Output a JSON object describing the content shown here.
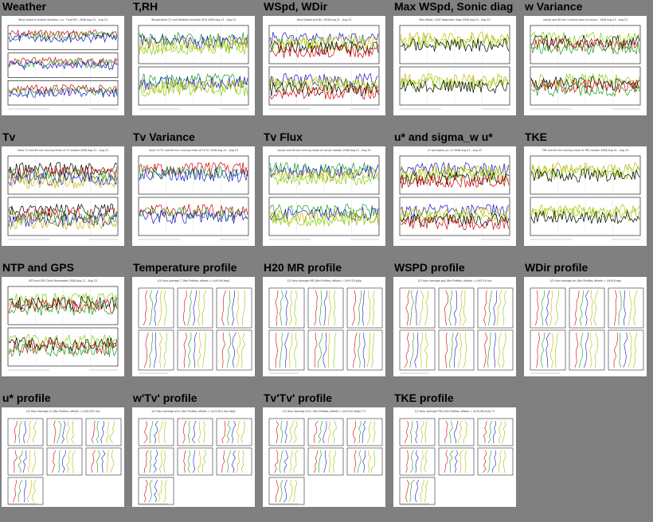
{
  "gallery": {
    "items": [
      {
        "title": "Weather",
        "kind": "ts",
        "caption": "Wind speed & median direction, u,v, T and RH - 2008 Aug 21 - Aug 23",
        "panels": 3
      },
      {
        "title": "T,RH",
        "kind": "ts",
        "caption": "Temperature (T) and Relative Humidity (RH) 2008 Aug 21 - Aug 23",
        "panels": 2
      },
      {
        "title": "WSpd, WDir",
        "kind": "ts",
        "caption": "Wind Speed and Dir, 2008 Aug 21 - Aug 23",
        "panels": 2
      },
      {
        "title": "Max WSpd, Sonic diag",
        "kind": "ts",
        "caption": "Max WSpd, CSAT diagnostic flags 2008 Aug 21 - Aug 23",
        "panels": 2
      },
      {
        "title": "w Variance",
        "kind": "ts",
        "caption": "var(w) and 60 min running mean of var(w) - 2008 Aug 21 - Aug 23",
        "panels": 2
      },
      {
        "title": "Tv",
        "kind": "ts",
        "caption": "Sonic Tv and 60 min running mean of Tv median 2008 Aug 21 - Aug 23",
        "panels": 2
      },
      {
        "title": "Tv Variance",
        "kind": "ts",
        "caption": "Sonic Tv'Tv' and 60 min running mean of Tv'Tv' 2008 Aug 21 - Aug 23",
        "panels": 2
      },
      {
        "title": "Tv Flux",
        "kind": "ts",
        "caption": "var(w) and 60 min running mean of var(w) median 2008 Aug 21 - Aug 23",
        "panels": 2
      },
      {
        "title": "u* and sigma_w u*",
        "kind": "ts",
        "caption": "u* and sigma_w / u* 2008 Aug 21 - Aug 23",
        "panels": 2
      },
      {
        "title": "TKE",
        "kind": "ts",
        "caption": "TKE and 60 min running mean of TKE median 2008 Aug 21 - Aug 23",
        "panels": 2
      },
      {
        "title": "NTP and GPS",
        "kind": "ts",
        "caption": "NTP and GPS Clock Parameters 2008 Aug 21 - Aug 23",
        "panels": 2
      },
      {
        "title": "Temperature profile",
        "kind": "prof",
        "caption": "1/2 Hour Average T,16m Profiles; offsets = (n)*0.64 degC",
        "rows": 2
      },
      {
        "title": "H20 MR profile",
        "kind": "prof",
        "caption": "1/2 Hour Average MR,16m Profiles; offsets = (n)*0.19 g/kg",
        "rows": 2
      },
      {
        "title": "WSPD profile",
        "kind": "prof",
        "caption": "1/2 Hour Average spd,16m Profiles; offsets = (n)*0.14 m/s",
        "rows": 2
      },
      {
        "title": "WDir profile",
        "kind": "prof",
        "caption": "1/2 Hour Average dir,16m Profiles; offsets = (n)*6.8 deg",
        "rows": 2
      },
      {
        "title": "u* profile",
        "kind": "prof",
        "caption": "1/2 Hour Average u*,16m Profiles; offsets = (n)*0.022 m/s",
        "rows": 3
      },
      {
        "title": "w'Tv' profile",
        "kind": "prof",
        "caption": "1/2 Hour Average w'tc',16m Profiles; offsets = (n)*0.014 m/s degC",
        "rows": 3
      },
      {
        "title": "Tv'Tv' profile",
        "kind": "prof",
        "caption": "1/2 Hour Average tc'tc',16m Profiles; offsets = (n)*0.04 (degC)^2",
        "rows": 3
      },
      {
        "title": "TKE profile",
        "kind": "prof",
        "caption": "1/2 Hour Average TKE,16m Profiles; offsets = (n)*0.06 (m/s)^2",
        "rows": 3
      }
    ]
  },
  "colors": {
    "background": "#808080",
    "series": [
      "#d40000",
      "#1a9a1a",
      "#1414c8",
      "#c8b400",
      "#7fd000",
      "#000000"
    ]
  }
}
